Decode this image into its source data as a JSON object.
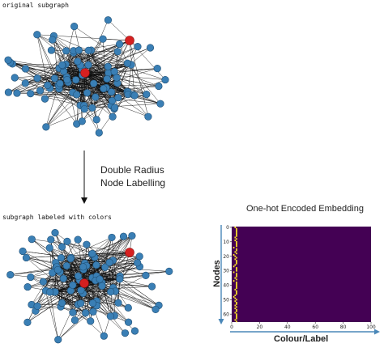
{
  "labels": {
    "top_graph": "original subgraph",
    "bottom_graph": "subgraph labeled with colors",
    "process_line1": "Double Radius",
    "process_line2": "Node Labelling",
    "embedding_title": "One-hot Encoded Embedding",
    "y_axis": "Nodes",
    "x_axis": "Colour/Label"
  },
  "colors": {
    "node": "#3a7fb5",
    "node_stroke": "#1f4f75",
    "highlight": "#d62020",
    "edge": "#111111",
    "viridis_bg": "#440154",
    "viridis_hot": "#fde725",
    "arrow_blue": "#4a87b8"
  },
  "chart_data": {
    "type": "heatmap",
    "title": "One-hot Encoded Embedding",
    "xlabel": "Colour/Label",
    "ylabel": "Nodes",
    "xlim": [
      0,
      100
    ],
    "ylim": [
      0,
      66
    ],
    "x_ticks": [
      0,
      20,
      40,
      60,
      80,
      100
    ],
    "y_ticks": [
      0,
      10,
      20,
      30,
      40,
      50,
      60
    ],
    "hot_columns": [
      1,
      2,
      3
    ],
    "rows": 66
  }
}
